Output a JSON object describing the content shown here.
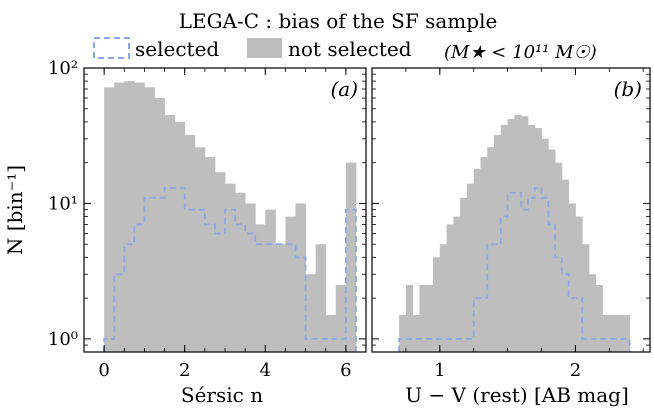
{
  "figure": {
    "title": "LEGA-C : bias of the SF sample",
    "legend": {
      "placement": "top",
      "selected_label": "selected",
      "not_selected_label": "not selected",
      "mass_cut": "(M★ < 10¹¹ M☉)"
    },
    "ylabel": "N [bin⁻¹]",
    "colors": {
      "not_selected": "#bebebe",
      "selected": "#8fa6e6",
      "axes": "#000000"
    }
  },
  "chart_data": [
    {
      "type": "bar",
      "panel_label": "(a)",
      "xlabel": "Sérsic n",
      "xlim": [
        -0.5,
        6.5
      ],
      "ylim": [
        0.8,
        100
      ],
      "yscale": "log",
      "xticks": [
        0,
        2,
        4,
        6
      ],
      "yticks": [
        1,
        10,
        100
      ],
      "ytick_labels": [
        "10⁰",
        "10¹",
        "10²"
      ],
      "bin_edges": [
        0.0,
        0.25,
        0.5,
        0.75,
        1.0,
        1.25,
        1.5,
        1.75,
        2.0,
        2.25,
        2.5,
        2.75,
        3.0,
        3.25,
        3.5,
        3.75,
        4.0,
        4.25,
        4.5,
        4.75,
        5.0,
        5.25,
        5.5,
        5.75,
        6.0,
        6.25
      ],
      "series": [
        {
          "name": "not selected",
          "style": "filled",
          "values": [
            72,
            78,
            80,
            78,
            72,
            60,
            45,
            40,
            32,
            26,
            22,
            17,
            14,
            12,
            10,
            7,
            9,
            5,
            8,
            10,
            3,
            5,
            1.5,
            2.5,
            20
          ]
        },
        {
          "name": "selected",
          "style": "dashed-step",
          "values": [
            1.0,
            3.0,
            5.0,
            7.0,
            11,
            11,
            13,
            13,
            9,
            9,
            7,
            6,
            9,
            7,
            6,
            5,
            5,
            5,
            5,
            4,
            1.0,
            1.0,
            1.0,
            1.0,
            9
          ]
        }
      ]
    },
    {
      "type": "bar",
      "panel_label": "(b)",
      "xlabel": "U − V (rest) [AB mag]",
      "xlim": [
        0.5,
        2.55
      ],
      "ylim": [
        0.8,
        100
      ],
      "yscale": "log",
      "xticks": [
        1,
        2
      ],
      "yticks": [
        1,
        10,
        100
      ],
      "bin_edges": [
        0.7,
        0.75,
        0.8,
        0.85,
        0.9,
        0.95,
        1.0,
        1.05,
        1.1,
        1.15,
        1.2,
        1.25,
        1.3,
        1.35,
        1.4,
        1.45,
        1.5,
        1.55,
        1.6,
        1.65,
        1.7,
        1.75,
        1.8,
        1.85,
        1.9,
        1.95,
        2.0,
        2.05,
        2.1,
        2.15,
        2.2,
        2.25,
        2.3,
        2.35,
        2.4
      ],
      "series": [
        {
          "name": "not selected",
          "style": "filled",
          "values": [
            1.5,
            2.5,
            1.5,
            2.5,
            2.5,
            4,
            5,
            7,
            8,
            11,
            14,
            18,
            22,
            26,
            32,
            38,
            42,
            45,
            44,
            38,
            36,
            30,
            25,
            20,
            15,
            10,
            8,
            5,
            3,
            2.5,
            1.5,
            1.5,
            1.5,
            1.5
          ]
        },
        {
          "name": "selected",
          "style": "dashed-step",
          "values": [
            1.0,
            1.0,
            1.0,
            1.0,
            1.0,
            1.0,
            1.0,
            1.0,
            1.0,
            1.0,
            1.0,
            2,
            2,
            5,
            5,
            8,
            12,
            12,
            9,
            11,
            13,
            11,
            7,
            4,
            3,
            2,
            2,
            1.0,
            1.0,
            1.0,
            1.0,
            1.0,
            1.0,
            1.0
          ]
        }
      ]
    }
  ]
}
